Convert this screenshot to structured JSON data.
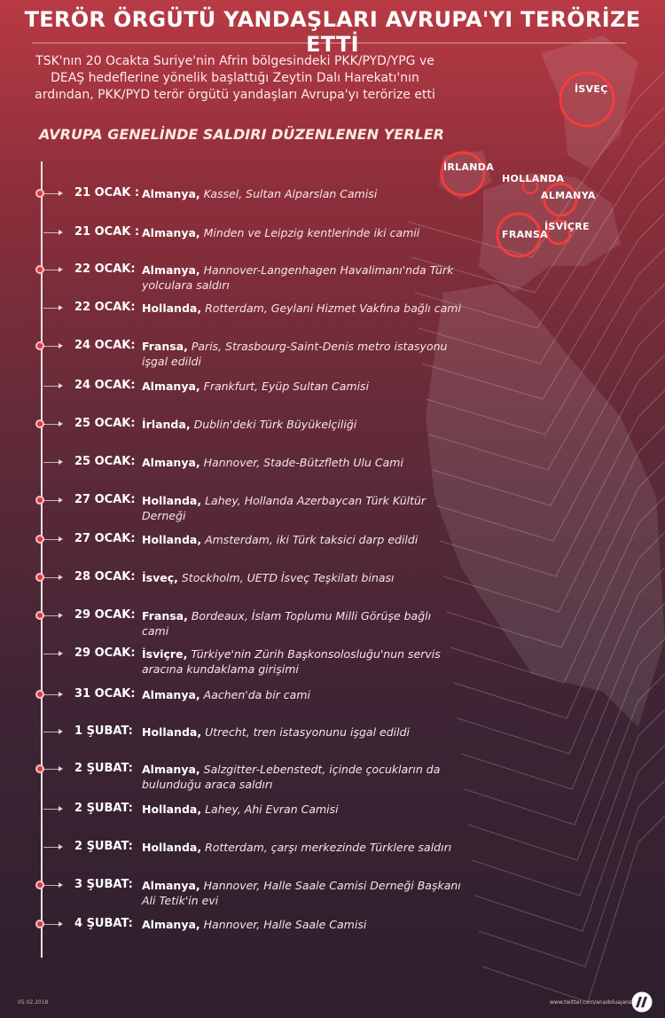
{
  "header": {
    "title": "TERÖR ÖRGÜTÜ YANDAŞLARI AVRUPA'YI TERÖRİZE ETTİ",
    "intro": "TSK'nın 20 Ocakta Suriye'nin Afrin bölgesindeki PKK/PYD/YPG ve DEAŞ hedeflerine yönelik başlattığı Zeytin Dalı Harekatı'nın ardından, PKK/PYD terör örgütü yandaşları Avrupa'yı terörize etti",
    "subtitle": "AVRUPA GENELİNDE SALDIRI DÜZENLENEN YERLER"
  },
  "map": {
    "labels": {
      "sweden": "İSVEÇ",
      "ireland": "İRLANDA",
      "netherlands": "HOLLANDA",
      "germany": "ALMANYA",
      "switzerland": "İSVİÇRE",
      "france": "FRANSA"
    }
  },
  "events": [
    {
      "date": "21 OCAK :",
      "country": "Almanya,",
      "place": "Kassel, Sultan Alparslan Camisi",
      "marker": "dot"
    },
    {
      "date": "21 OCAK :",
      "country": "Almanya,",
      "place": "Minden ve Leipzig kentlerinde iki camii",
      "marker": "arrow"
    },
    {
      "date": "22 OCAK:",
      "country": "Almanya,",
      "place": "Hannover-Langenhagen Havalimanı'nda Türk yolculara saldırı",
      "marker": "dot"
    },
    {
      "date": "22 OCAK:",
      "country": "Hollanda,",
      "place": "Rotterdam, Geylani Hizmet Vakfına bağlı cami",
      "marker": "arrow"
    },
    {
      "date": "24 OCAK:",
      "country": "Fransa,",
      "place": "Paris, Strasbourg-Saint-Denis metro istasyonu işgal edildi",
      "marker": "dot"
    },
    {
      "date": "24 OCAK:",
      "country": "Almanya,",
      "place": "Frankfurt, Eyüp Sultan Camisi",
      "marker": "arrow"
    },
    {
      "date": "25 OCAK:",
      "country": "İrlanda,",
      "place": "Dublin'deki Türk Büyükelçiliği",
      "marker": "dot"
    },
    {
      "date": "25 OCAK:",
      "country": "Almanya,",
      "place": "Hannover, Stade-Bützfleth Ulu Cami",
      "marker": "arrow"
    },
    {
      "date": "27 OCAK:",
      "country": "Hollanda,",
      "place": "Lahey, Hollanda Azerbaycan Türk Kültür Derneği",
      "marker": "dot"
    },
    {
      "date": "27 OCAK:",
      "country": "Hollanda,",
      "place": "Amsterdam, iki Türk taksici darp edildi",
      "marker": "dot"
    },
    {
      "date": "28 OCAK:",
      "country": "İsveç,",
      "place": "Stockholm, UETD İsveç Teşkilatı binası",
      "marker": "dot"
    },
    {
      "date": "29 OCAK:",
      "country": "Fransa,",
      "place": "Bordeaux, İslam Toplumu Milli Görüşe bağlı cami",
      "marker": "dot"
    },
    {
      "date": "29 OCAK:",
      "country": "İsviçre,",
      "place": "Türkiye'nin Zürih Başkonsolosluğu'nun servis aracına kundaklama girişimi",
      "marker": "arrow"
    },
    {
      "date": "31 OCAK:",
      "country": "Almanya,",
      "place": "Aachen'da bir cami",
      "marker": "dot"
    },
    {
      "date": "1 ŞUBAT:",
      "country": "Hollanda,",
      "place": "Utrecht, tren istasyonunu işgal edildi",
      "marker": "arrow"
    },
    {
      "date": "2 ŞUBAT:",
      "country": "Almanya,",
      "place": "Salzgitter-Lebenstedt, içinde çocukların da bulunduğu araca saldırı",
      "marker": "dot"
    },
    {
      "date": "2 ŞUBAT:",
      "country": "Hollanda,",
      "place": "Lahey, Ahi Evran Camisi",
      "marker": "arrow"
    },
    {
      "date": "2 ŞUBAT:",
      "country": "Hollanda,",
      "place": "Rotterdam, çarşı merkezinde Türklere saldırı",
      "marker": "arrow"
    },
    {
      "date": "3 ŞUBAT:",
      "country": "Almanya,",
      "place": "Hannover, Halle Saale Camisi Derneği Başkanı Ali Tetik'in evi",
      "marker": "dot"
    },
    {
      "date": "4 ŞUBAT:",
      "country": "Almanya,",
      "place": "Hannover, Halle Saale Camisi",
      "marker": "dot"
    }
  ],
  "footer": {
    "date": "05.02.2018",
    "url": "www.twitter.com/anadoluajansi",
    "logo": "AA"
  }
}
